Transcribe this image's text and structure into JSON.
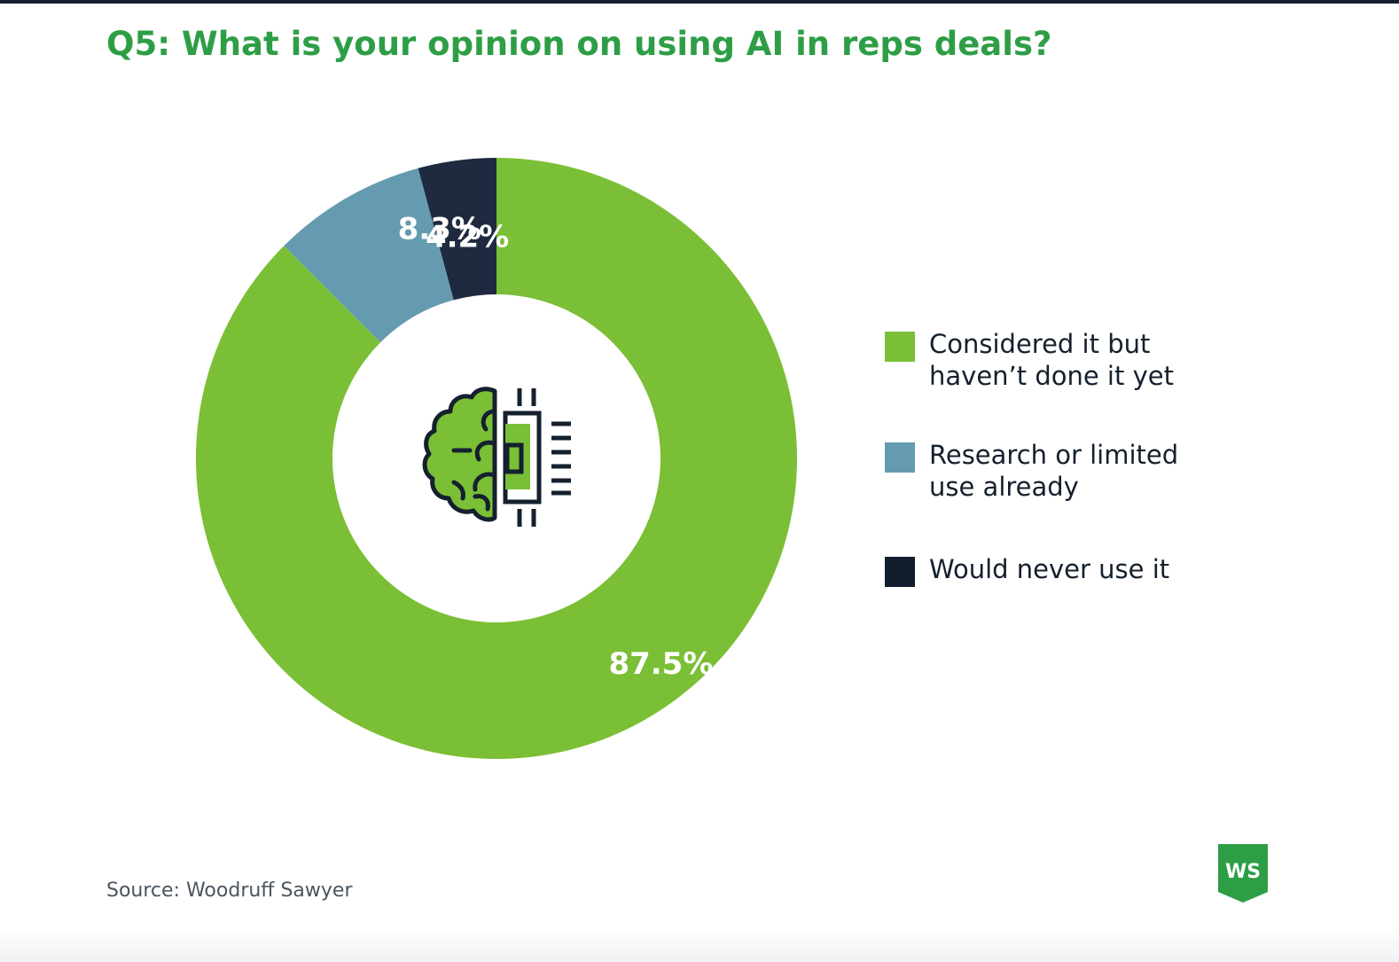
{
  "title": "Q5: What is your opinion on using AI in reps deals?",
  "source": "Source: Woodruff Sawyer",
  "logo": {
    "text": "WS",
    "color": "#2e9e46"
  },
  "center_icon": "brain-chip-icon",
  "chart_data": {
    "type": "pie",
    "variant": "donut",
    "title": "Q5: What is your opinion on using AI in reps deals?",
    "categories": [
      "Considered it but haven’t done it yet",
      "Research or limited use already",
      "Would never use it"
    ],
    "values": [
      87.5,
      8.3,
      4.2
    ],
    "value_labels": [
      "87.5%",
      "8.3%",
      "4.2%"
    ],
    "colors": [
      "#7abf35",
      "#659bb0",
      "#1f2a40"
    ],
    "legend_position": "right"
  },
  "legend": [
    {
      "line1": "Considered it but",
      "line2": "haven’t done it yet",
      "color": "#7abf35"
    },
    {
      "line1": "Research or limited",
      "line2": "use already",
      "color": "#659bb0"
    },
    {
      "line1": "Would never use it",
      "line2": "",
      "color": "#0f1d2c"
    }
  ]
}
